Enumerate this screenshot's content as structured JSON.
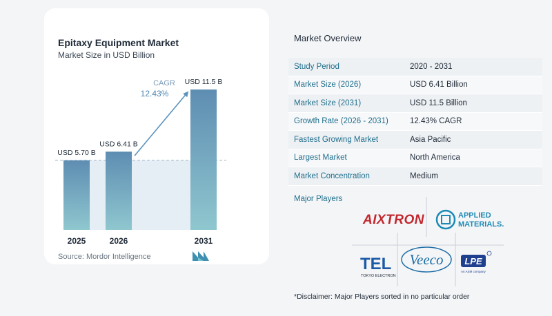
{
  "chart": {
    "title": "Epitaxy Equipment Market",
    "subtitle": "Market Size in USD Billion",
    "source": "Source:  Mordor Intelligence",
    "cagr_label": "CAGR",
    "cagr_value": "12.43%"
  },
  "chart_data": {
    "type": "bar",
    "categories": [
      "2025",
      "2026",
      "2031"
    ],
    "values": [
      5.7,
      6.41,
      11.5
    ],
    "data_labels": [
      "USD 5.70 B",
      "USD 6.41 B",
      "USD 11.5 B"
    ],
    "title": "Epitaxy Equipment Market",
    "subtitle": "Market Size in USD Billion",
    "ylim": [
      0,
      11.5
    ],
    "grid": false,
    "reference_line": "dashed at 2025 value",
    "annotation": "CAGR 12.43%",
    "colors": {
      "bar_top": "#5e8db2",
      "bar_bottom": "#8fc7cf",
      "band": "#e6eef5",
      "arrow": "#5b93bd"
    }
  },
  "overview": {
    "title": "Market Overview",
    "rows": [
      {
        "label": "Study Period",
        "value": "2020 - 2031"
      },
      {
        "label": "Market Size (2026)",
        "value": "USD 6.41 Billion"
      },
      {
        "label": "Market Size (2031)",
        "value": "USD 11.5 Billion"
      },
      {
        "label": "Growth Rate (2026 - 2031)",
        "value": "12.43% CAGR"
      },
      {
        "label": "Fastest Growing Market",
        "value": "Asia Pacific"
      },
      {
        "label": "Largest Market",
        "value": "North America"
      },
      {
        "label": "Market Concentration",
        "value": "Medium"
      }
    ]
  },
  "players": {
    "title": "Major Players",
    "logos": {
      "aixtron": "AIXTRON",
      "applied_1": "APPLIED",
      "applied_2": "MATERIALS.",
      "tel": "TEL",
      "tel_sub": "TOKYO ELECTRON",
      "veeco": "Veeco",
      "lpe": "LPE",
      "lpe_sub": "An ASM company"
    }
  },
  "disclaimer": "*Disclaimer: Major Players sorted in no particular order"
}
